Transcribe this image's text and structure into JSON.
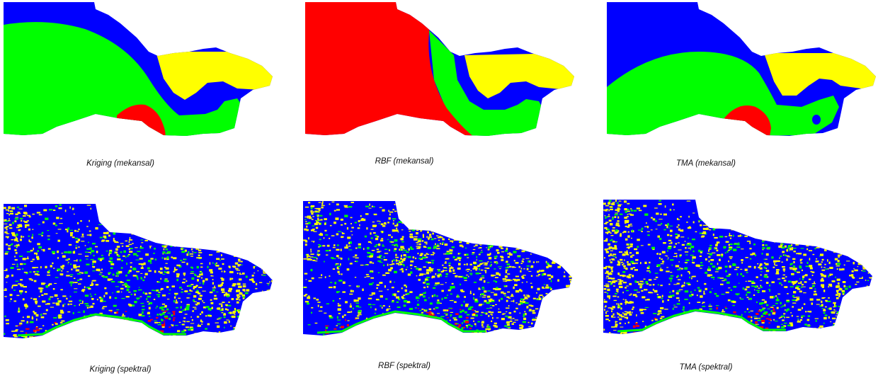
{
  "colors": {
    "blue": "#0000ff",
    "green": "#00ff00",
    "yellow": "#ffff00",
    "red": "#ff0000",
    "background": "#ffffff"
  },
  "rows": [
    {
      "panels": [
        {
          "caption": "Kriging (mekansal)",
          "style": "spatial",
          "variant": "kriging"
        },
        {
          "caption": "RBF (mekansal)",
          "style": "spatial",
          "variant": "rbf"
        },
        {
          "caption": "TMA (mekansal)",
          "style": "spatial",
          "variant": "tma"
        }
      ]
    },
    {
      "panels": [
        {
          "caption": "Kriging (spektral)",
          "style": "spectral",
          "variant": "kriging"
        },
        {
          "caption": "RBF (spektral)",
          "style": "spectral",
          "variant": "rbf"
        },
        {
          "caption": "TMA (spektral)",
          "style": "spectral",
          "variant": "tma"
        }
      ]
    }
  ]
}
